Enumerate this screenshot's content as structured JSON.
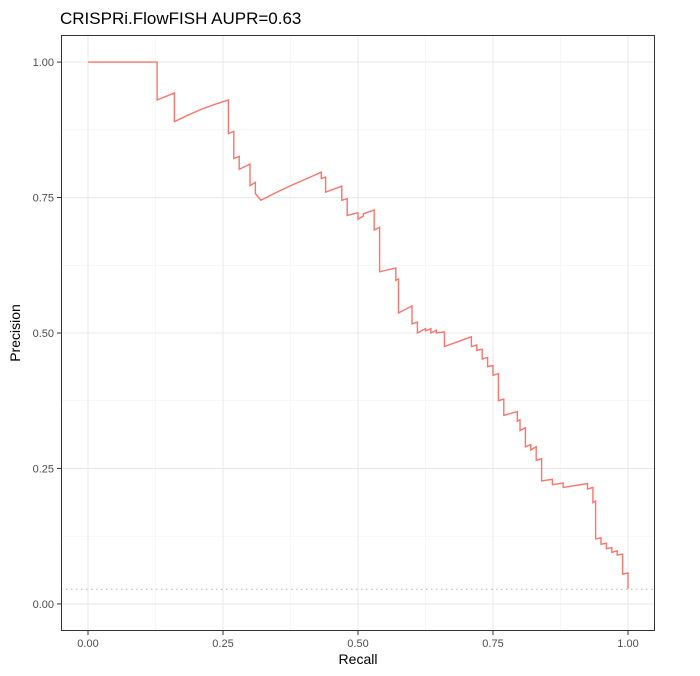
{
  "chart_data": {
    "type": "line",
    "title": "CRISPRi.FlowFISH AUPR=0.63",
    "xlabel": "Recall",
    "ylabel": "Precision",
    "xlim": [
      -0.05,
      1.05
    ],
    "ylim": [
      -0.05,
      1.05
    ],
    "x_ticks": [
      0.0,
      0.25,
      0.5,
      0.75,
      1.0
    ],
    "x_tick_labels": [
      "0.00",
      "0.25",
      "0.50",
      "0.75",
      "1.00"
    ],
    "y_ticks": [
      0.0,
      0.25,
      0.5,
      0.75,
      1.0
    ],
    "y_tick_labels": [
      "0.00",
      "0.25",
      "0.50",
      "0.75",
      "1.00"
    ],
    "grid": true,
    "line_color": "#f8766d",
    "baseline": {
      "y": 0.027,
      "style": "dotted",
      "color": "#b3b3b3"
    },
    "series": [
      {
        "x": [
          0.0,
          0.128,
          0.128,
          0.16,
          0.16,
          0.185,
          0.21,
          0.235,
          0.26,
          0.26,
          0.27,
          0.27,
          0.28,
          0.28,
          0.3,
          0.3,
          0.31,
          0.31,
          0.32,
          0.35,
          0.38,
          0.41,
          0.432,
          0.432,
          0.44,
          0.44,
          0.47,
          0.47,
          0.48,
          0.48,
          0.5,
          0.5,
          0.51,
          0.51,
          0.53,
          0.53,
          0.54,
          0.54,
          0.57,
          0.57,
          0.575,
          0.575,
          0.6,
          0.6,
          0.61,
          0.61,
          0.625,
          0.625,
          0.635,
          0.635,
          0.645,
          0.645,
          0.66,
          0.66,
          0.71,
          0.71,
          0.72,
          0.72,
          0.73,
          0.73,
          0.74,
          0.74,
          0.75,
          0.75,
          0.76,
          0.76,
          0.77,
          0.77,
          0.795,
          0.795,
          0.8,
          0.8,
          0.81,
          0.81,
          0.82,
          0.82,
          0.83,
          0.83,
          0.84,
          0.84,
          0.86,
          0.86,
          0.88,
          0.88,
          0.925,
          0.925,
          0.935,
          0.935,
          0.94,
          0.94,
          0.95,
          0.95,
          0.96,
          0.96,
          0.97,
          0.97,
          0.98,
          0.98,
          0.99,
          0.99,
          1.0,
          1.0
        ],
        "y": [
          1.0,
          1.0,
          0.93,
          0.943,
          0.89,
          0.902,
          0.913,
          0.922,
          0.93,
          0.868,
          0.872,
          0.822,
          0.826,
          0.802,
          0.812,
          0.772,
          0.778,
          0.757,
          0.745,
          0.76,
          0.774,
          0.787,
          0.797,
          0.785,
          0.788,
          0.76,
          0.771,
          0.745,
          0.748,
          0.717,
          0.722,
          0.71,
          0.716,
          0.72,
          0.727,
          0.69,
          0.695,
          0.613,
          0.62,
          0.597,
          0.6,
          0.537,
          0.55,
          0.517,
          0.52,
          0.5,
          0.508,
          0.504,
          0.508,
          0.5,
          0.505,
          0.5,
          0.502,
          0.475,
          0.493,
          0.475,
          0.478,
          0.468,
          0.47,
          0.452,
          0.455,
          0.438,
          0.44,
          0.422,
          0.425,
          0.375,
          0.378,
          0.348,
          0.355,
          0.337,
          0.34,
          0.32,
          0.325,
          0.29,
          0.294,
          0.284,
          0.29,
          0.265,
          0.268,
          0.227,
          0.23,
          0.22,
          0.223,
          0.215,
          0.222,
          0.212,
          0.215,
          0.187,
          0.19,
          0.12,
          0.122,
          0.11,
          0.112,
          0.102,
          0.104,
          0.095,
          0.098,
          0.09,
          0.092,
          0.055,
          0.057,
          0.028
        ]
      }
    ]
  }
}
